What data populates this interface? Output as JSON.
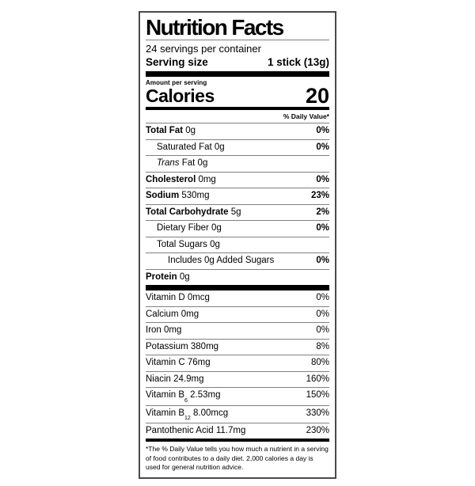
{
  "label": {
    "title": "Nutrition Facts",
    "servings_per_container": "24 servings per container",
    "serving_size_label": "Serving size",
    "serving_size_value": "1 stick (13g)",
    "amount_per_serving": "Amount per serving",
    "calories_label": "Calories",
    "calories_value": "20",
    "daily_value_header": "% Daily Value*",
    "nutrient_rows": [
      {
        "name": "Total Fat",
        "amount": "0g",
        "dv": "0%",
        "bold": true,
        "indent": 0
      },
      {
        "name": "Saturated Fat",
        "amount": "0g",
        "dv": "0%",
        "bold": false,
        "indent": 1
      },
      {
        "name_italic": "Trans",
        "name": " Fat",
        "amount": "0g",
        "dv": "",
        "bold": false,
        "indent": 1
      },
      {
        "name": "Cholesterol",
        "amount": "0mg",
        "dv": "0%",
        "bold": true,
        "indent": 0
      },
      {
        "name": "Sodium",
        "amount": "530mg",
        "dv": "23%",
        "bold": true,
        "indent": 0
      },
      {
        "name": "Total Carbohydrate",
        "amount": "5g",
        "dv": "2%",
        "bold": true,
        "indent": 0
      },
      {
        "name": "Dietary Fiber",
        "amount": "0g",
        "dv": "0%",
        "bold": false,
        "indent": 1
      },
      {
        "name": "Total Sugars",
        "amount": "0g",
        "dv": "",
        "bold": false,
        "indent": 1
      },
      {
        "name": "Includes 0g Added Sugars",
        "amount": "",
        "dv": "0%",
        "bold": false,
        "indent": 2
      },
      {
        "name": "Protein",
        "amount": "0g",
        "dv": "",
        "bold": true,
        "indent": 0
      }
    ],
    "vitamin_rows": [
      {
        "name": "Vitamin D",
        "amount": "0mcg",
        "dv": "0%"
      },
      {
        "name": "Calcium",
        "amount": "0mg",
        "dv": "0%"
      },
      {
        "name": "Iron",
        "amount": "0mg",
        "dv": "0%"
      },
      {
        "name": "Potassium",
        "amount": "380mg",
        "dv": "8%"
      },
      {
        "name": "Vitamin C",
        "amount": "76mg",
        "dv": "80%"
      },
      {
        "name": "Niacin",
        "amount": "24.9mg",
        "dv": "160%"
      },
      {
        "name": "Vitamin B",
        "sub": "6",
        "amount": "2.53mg",
        "dv": "150%"
      },
      {
        "name": "Vitamin B",
        "sub": "12",
        "amount": "8.00mcg",
        "dv": "330%"
      },
      {
        "name": "Pantothenic Acid",
        "amount": "11.7mg",
        "dv": "230%"
      }
    ],
    "footnote": "*The % Daily Value tells you how much a nutrient in a serving of food contributes to a daily diet. 2,000 calories a day is used for general nutrition advice."
  },
  "colors": {
    "ink": "#000000",
    "hairline": "#808080",
    "border": "#4a4a4a",
    "background": "#ffffff"
  }
}
